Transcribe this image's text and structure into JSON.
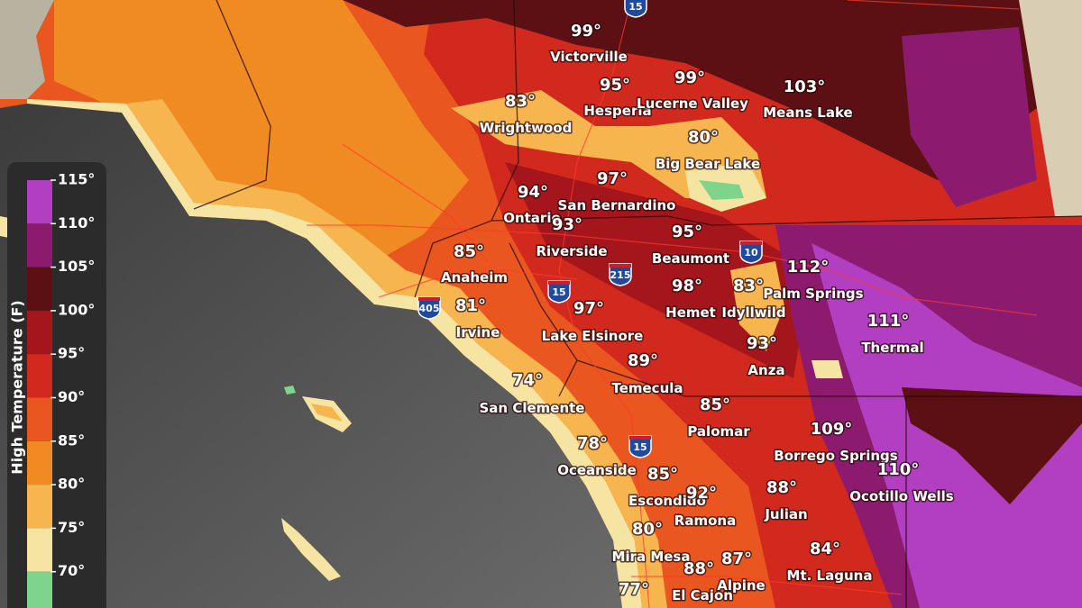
{
  "legend": {
    "title": "High Temperature (F)",
    "ticks": [
      "115°",
      "110°",
      "105°",
      "100°",
      "95°",
      "90°",
      "85°",
      "80°",
      "75°",
      "70°"
    ],
    "colors": [
      "#b23fc2",
      "#8c1b70",
      "#5c1014",
      "#a5151c",
      "#d2291e",
      "#e9561f",
      "#f08a22",
      "#f7b550",
      "#f5e4a2",
      "#7fd48c"
    ]
  },
  "cities": [
    {
      "name": "Victorville",
      "temp": "99°"
    },
    {
      "name": "Hesperia",
      "temp": "95°"
    },
    {
      "name": "Lucerne Valley",
      "temp": "99°"
    },
    {
      "name": "Means Lake",
      "temp": "103°"
    },
    {
      "name": "Wrightwood",
      "temp": "83°"
    },
    {
      "name": "Big Bear Lake",
      "temp": "80°"
    },
    {
      "name": "Ontario",
      "temp": "94°"
    },
    {
      "name": "San Bernardino",
      "temp": "97°"
    },
    {
      "name": "Riverside",
      "temp": "93°"
    },
    {
      "name": "Beaumont",
      "temp": "95°"
    },
    {
      "name": "Anaheim",
      "temp": "85°"
    },
    {
      "name": "Palm Springs",
      "temp": "112°"
    },
    {
      "name": "Hemet",
      "temp": "98°"
    },
    {
      "name": "Idyllwild",
      "temp": "83°"
    },
    {
      "name": "Irvine",
      "temp": "81°"
    },
    {
      "name": "Lake Elsinore",
      "temp": "97°"
    },
    {
      "name": "Thermal",
      "temp": "111°"
    },
    {
      "name": "Anza",
      "temp": "93°"
    },
    {
      "name": "Temecula",
      "temp": "89°"
    },
    {
      "name": "San Clemente",
      "temp": "74°"
    },
    {
      "name": "Palomar",
      "temp": "85°"
    },
    {
      "name": "Borrego Springs",
      "temp": "109°"
    },
    {
      "name": "Oceanside",
      "temp": "78°"
    },
    {
      "name": "Escondido",
      "temp": "85°"
    },
    {
      "name": "Ocotillo Wells",
      "temp": "110°"
    },
    {
      "name": "Ramona",
      "temp": "92°"
    },
    {
      "name": "Julian",
      "temp": "88°"
    },
    {
      "name": "Mira Mesa",
      "temp": "80°"
    },
    {
      "name": "Mt. Laguna",
      "temp": "84°"
    },
    {
      "name": "El Cajon",
      "temp": "88°"
    },
    {
      "name": "Alpine",
      "temp": "87°"
    },
    {
      "temp": "77°"
    }
  ],
  "highways": [
    "15",
    "15",
    "215",
    "405",
    "10",
    "15"
  ]
}
